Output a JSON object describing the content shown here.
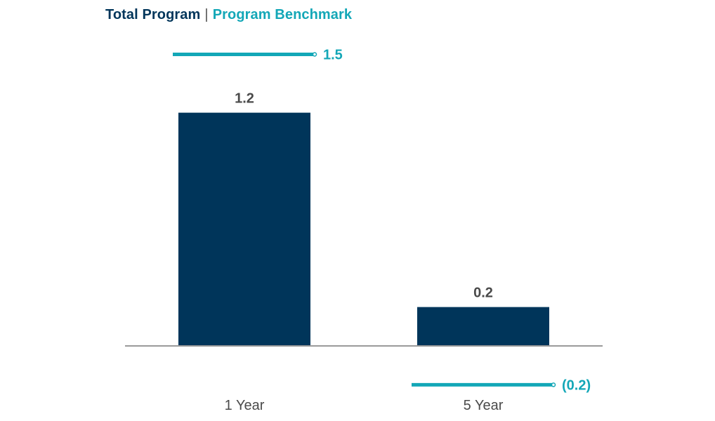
{
  "legend": {
    "total_program": "Total Program",
    "separator": "|",
    "benchmark": "Program Benchmark"
  },
  "colors": {
    "bar": "#00355a",
    "benchmark": "#13a7b7",
    "axis": "#9a9a9a",
    "text": "#4a4a4a",
    "legend_primary": "#00355a"
  },
  "chart_data": {
    "type": "bar",
    "categories": [
      "1 Year",
      "5 Year"
    ],
    "series": [
      {
        "name": "Total Program",
        "values": [
          1.2,
          0.2
        ],
        "labels": [
          "1.2",
          "0.2"
        ]
      },
      {
        "name": "Program Benchmark",
        "values": [
          1.5,
          -0.2
        ],
        "labels": [
          "1.5",
          "(0.2)"
        ]
      }
    ],
    "title": "",
    "xlabel": "",
    "ylabel": "",
    "ylim": [
      -0.3,
      1.6
    ],
    "grid": false,
    "legend_position": "top-left"
  }
}
